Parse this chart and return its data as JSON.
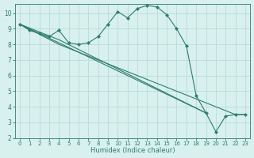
{
  "xlabel": "Humidex (Indice chaleur)",
  "bg_color": "#d8f0ee",
  "grid_color": "#b8dcd8",
  "line_color": "#2e7d6e",
  "xlim": [
    -0.5,
    23.5
  ],
  "ylim": [
    2,
    10.6
  ],
  "xticks": [
    0,
    1,
    2,
    3,
    4,
    5,
    6,
    7,
    8,
    9,
    10,
    11,
    12,
    13,
    14,
    15,
    16,
    17,
    18,
    19,
    20,
    21,
    22,
    23
  ],
  "yticks": [
    2,
    3,
    4,
    5,
    6,
    7,
    8,
    9,
    10
  ],
  "main_line": {
    "x": [
      0,
      1,
      2,
      3,
      4,
      5,
      6,
      7,
      8,
      9,
      10,
      11,
      12,
      13,
      14,
      15,
      16,
      17,
      18,
      19,
      20,
      21,
      22,
      23
    ],
    "y": [
      9.3,
      8.9,
      8.7,
      8.5,
      8.9,
      8.1,
      8.0,
      8.1,
      8.5,
      9.3,
      10.1,
      9.7,
      10.3,
      10.5,
      10.4,
      9.9,
      9.0,
      7.9,
      4.7,
      3.6,
      2.4,
      3.4,
      3.5,
      3.5
    ]
  },
  "fan_lines": [
    {
      "x": [
        0,
        4,
        19
      ],
      "y": [
        9.3,
        8.3,
        3.6
      ]
    },
    {
      "x": [
        0,
        4,
        19
      ],
      "y": [
        9.3,
        8.1,
        3.6
      ]
    },
    {
      "x": [
        0,
        4,
        22,
        23
      ],
      "y": [
        9.3,
        8.0,
        3.5,
        3.5
      ]
    }
  ]
}
